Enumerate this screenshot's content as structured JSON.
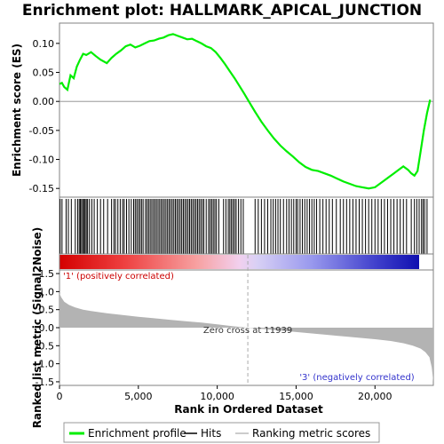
{
  "title": "Enrichment plot: HALLMARK_APICAL_JUNCTION",
  "colors": {
    "es_line": "#00ee00",
    "hits": "#000000",
    "metric_fill": "#b3b3b3",
    "pos_label": "#cc0000",
    "neg_label": "#3333cc"
  },
  "chart_data": [
    {
      "type": "line",
      "name": "enrichment-score-panel",
      "ylabel": "Enrichment score (ES)",
      "xlim": [
        0,
        23700
      ],
      "ylim": [
        -0.165,
        0.135
      ],
      "yticks": [
        0.1,
        0.05,
        0.0,
        -0.05,
        -0.1,
        -0.15
      ],
      "ytick_labels": [
        "0.10",
        "0.05",
        "0.00",
        "-0.05",
        "-0.10",
        "-0.15"
      ],
      "grid": false,
      "series": [
        {
          "name": "Enrichment profile",
          "x": [
            0,
            150,
            300,
            500,
            700,
            900,
            1100,
            1300,
            1500,
            1700,
            2000,
            2300,
            2600,
            3000,
            3300,
            3600,
            3900,
            4200,
            4500,
            4800,
            5100,
            5400,
            5700,
            6000,
            6300,
            6600,
            6900,
            7200,
            7500,
            7800,
            8100,
            8400,
            8700,
            9000,
            9300,
            9600,
            9900,
            10200,
            10500,
            10800,
            11100,
            11400,
            11700,
            12000,
            12400,
            12800,
            13200,
            13600,
            14000,
            14400,
            14800,
            15200,
            15600,
            16000,
            16400,
            16800,
            17200,
            17600,
            18000,
            18400,
            18800,
            19200,
            19600,
            20000,
            20300,
            20600,
            20900,
            21200,
            21500,
            21800,
            22100,
            22300,
            22500,
            22700,
            22900,
            23100,
            23300,
            23500
          ],
          "y": [
            0.03,
            0.032,
            0.025,
            0.02,
            0.045,
            0.04,
            0.06,
            0.072,
            0.082,
            0.08,
            0.085,
            0.078,
            0.072,
            0.066,
            0.075,
            0.082,
            0.088,
            0.095,
            0.098,
            0.093,
            0.096,
            0.1,
            0.104,
            0.105,
            0.108,
            0.11,
            0.114,
            0.116,
            0.113,
            0.11,
            0.107,
            0.108,
            0.104,
            0.1,
            0.095,
            0.092,
            0.085,
            0.075,
            0.064,
            0.052,
            0.04,
            0.027,
            0.014,
            0.0,
            -0.018,
            -0.035,
            -0.05,
            -0.064,
            -0.076,
            -0.086,
            -0.095,
            -0.105,
            -0.113,
            -0.118,
            -0.12,
            -0.124,
            -0.128,
            -0.133,
            -0.138,
            -0.142,
            -0.146,
            -0.148,
            -0.15,
            -0.148,
            -0.142,
            -0.136,
            -0.13,
            -0.124,
            -0.118,
            -0.112,
            -0.118,
            -0.124,
            -0.128,
            -0.12,
            -0.085,
            -0.05,
            -0.02,
            0.003
          ]
        }
      ]
    },
    {
      "type": "bar",
      "name": "hits-panel",
      "series": [
        {
          "name": "Hits",
          "x": [
            40,
            160,
            420,
            560,
            750,
            1000,
            1150,
            1250,
            1320,
            1400,
            1480,
            1560,
            1620,
            1700,
            1780,
            1900,
            2050,
            2200,
            2400,
            2600,
            2800,
            3050,
            3300,
            3450,
            3550,
            3700,
            3850,
            4000,
            4100,
            4250,
            4400,
            4550,
            4700,
            4800,
            4900,
            5000,
            5100,
            5200,
            5300,
            5450,
            5550,
            5650,
            5750,
            5850,
            5950,
            6050,
            6150,
            6250,
            6350,
            6450,
            6550,
            6650,
            6750,
            6850,
            6950,
            7050,
            7150,
            7250,
            7350,
            7450,
            7550,
            7650,
            7750,
            7850,
            7950,
            8050,
            8150,
            8250,
            8350,
            8450,
            8550,
            8650,
            8750,
            8850,
            8950,
            9050,
            9150,
            9300,
            9450,
            9550,
            9650,
            9750,
            9850,
            9950,
            10100,
            10400,
            10550,
            10700,
            10800,
            10900,
            11000,
            11100,
            11200,
            11350,
            11500,
            11650,
            12400,
            12600,
            12800,
            13000,
            13200,
            13400,
            13550,
            13700,
            13850,
            14000,
            14200,
            14400,
            14550,
            14700,
            14850,
            15000,
            15100,
            15250,
            15400,
            15550,
            15700,
            15850,
            16000,
            16150,
            16300,
            16500,
            16700,
            16900,
            17100,
            17300,
            17550,
            17800,
            18000,
            18200,
            18400,
            18600,
            18800,
            19000,
            19200,
            19400,
            19600,
            19800,
            20000,
            20200,
            20400,
            20600,
            20800,
            21000,
            21200,
            21400,
            21600,
            21800,
            22000,
            22300,
            22500,
            22650,
            22800,
            22950,
            23050,
            23150,
            23300
          ]
        }
      ]
    },
    {
      "type": "area",
      "name": "ranked-metric-panel",
      "ylabel": "Ranked list metric (Signal2Noise)",
      "xlabel": "Rank in Ordered Dataset",
      "xlim": [
        0,
        23700
      ],
      "ylim": [
        -1.6,
        1.6
      ],
      "xticks": [
        0,
        5000,
        10000,
        15000,
        20000
      ],
      "xtick_labels": [
        "0",
        "5,000",
        "10,000",
        "15,000",
        "20,000"
      ],
      "yticks": [
        1.5,
        1.0,
        0.5,
        0.0,
        -0.5,
        -1.0,
        -1.5
      ],
      "ytick_labels": [
        "1.5",
        "1.0",
        "0.5",
        "0.0",
        "-0.5",
        "-1.0",
        "-1.5"
      ],
      "series": [
        {
          "name": "Ranking metric scores",
          "x": [
            0,
            100,
            300,
            600,
            1000,
            1500,
            2000,
            3000,
            4000,
            5000,
            6000,
            7000,
            8000,
            9000,
            10000,
            11000,
            11939,
            13000,
            14000,
            15000,
            16000,
            17000,
            18000,
            19000,
            20000,
            21000,
            21800,
            22400,
            22900,
            23200,
            23450,
            23600,
            23700
          ],
          "y": [
            0.95,
            0.85,
            0.72,
            0.63,
            0.56,
            0.5,
            0.46,
            0.4,
            0.35,
            0.3,
            0.26,
            0.22,
            0.18,
            0.14,
            0.09,
            0.04,
            0.0,
            -0.04,
            -0.08,
            -0.12,
            -0.16,
            -0.2,
            -0.24,
            -0.28,
            -0.32,
            -0.37,
            -0.43,
            -0.5,
            -0.58,
            -0.68,
            -0.82,
            -1.1,
            -1.5
          ]
        }
      ],
      "annotations": [
        "'1' (positively correlated)",
        "Zero cross at 11939",
        "'3' (negatively correlated)"
      ]
    }
  ],
  "legend": {
    "items": [
      "Enrichment profile",
      "Hits",
      "Ranking metric scores"
    ]
  }
}
